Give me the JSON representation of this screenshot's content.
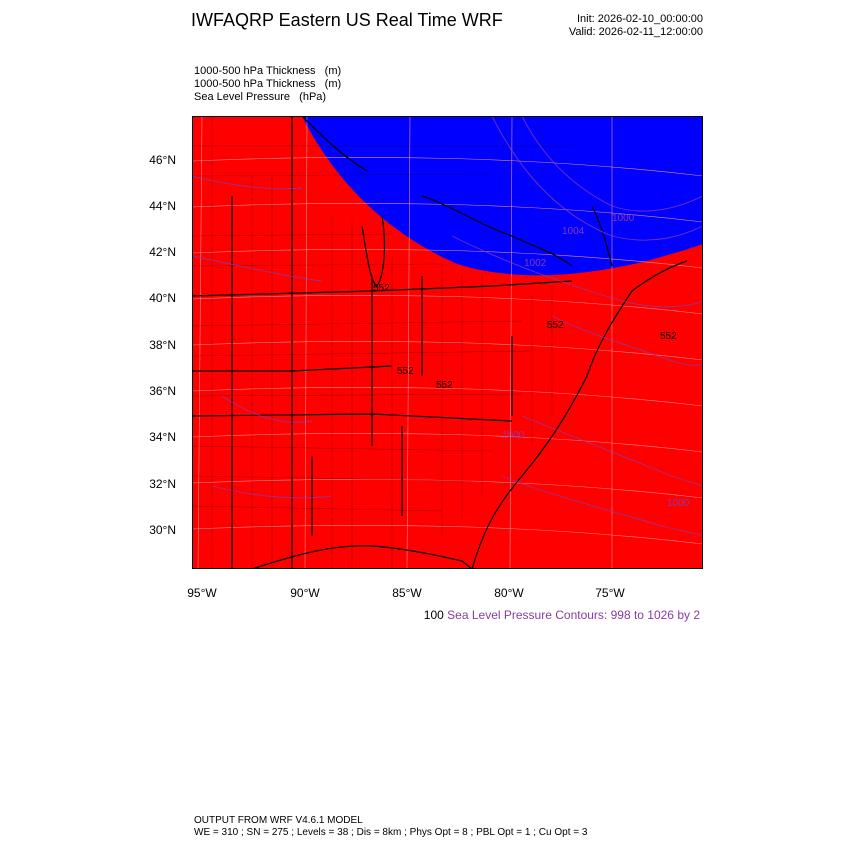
{
  "header": {
    "title": "IWFAQRP Eastern US Real Time WRF",
    "init": "Init: 2026-02-10_00:00:00",
    "valid": "Valid: 2026-02-11_12:00:00"
  },
  "fields": [
    "1000-500 hPa Thickness   (m)",
    "1000-500 hPa Thickness   (m)",
    "Sea Level Pressure   (hPa)"
  ],
  "axes": {
    "lat_labels": [
      "46°N",
      "44°N",
      "42°N",
      "40°N",
      "38°N",
      "36°N",
      "34°N",
      "32°N",
      "30°N"
    ],
    "lon_labels": [
      "95°W",
      "90°W",
      "85°W",
      "80°W",
      "75°W"
    ]
  },
  "contours": {
    "thickness_labels": [
      "552",
      "552",
      "552",
      "552",
      "552"
    ],
    "slp_labels": [
      "1000",
      "1004",
      "1002",
      "1000",
      "1000"
    ],
    "thickness_number": "100",
    "slp_note": "Sea Level Pressure Contours: 998 to 1026 by 2"
  },
  "colors": {
    "warm_fill": "#ff0000",
    "cold_fill": "#0000ff",
    "slp_contour": "#8a3aa8"
  },
  "footer": {
    "line1": "OUTPUT FROM WRF V4.6.1 MODEL",
    "line2": "WE = 310 ; SN = 275 ; Levels = 38 ; Dis = 8km ; Phys Opt = 8 ; PBL Opt = 1 ; Cu Opt = 3"
  }
}
